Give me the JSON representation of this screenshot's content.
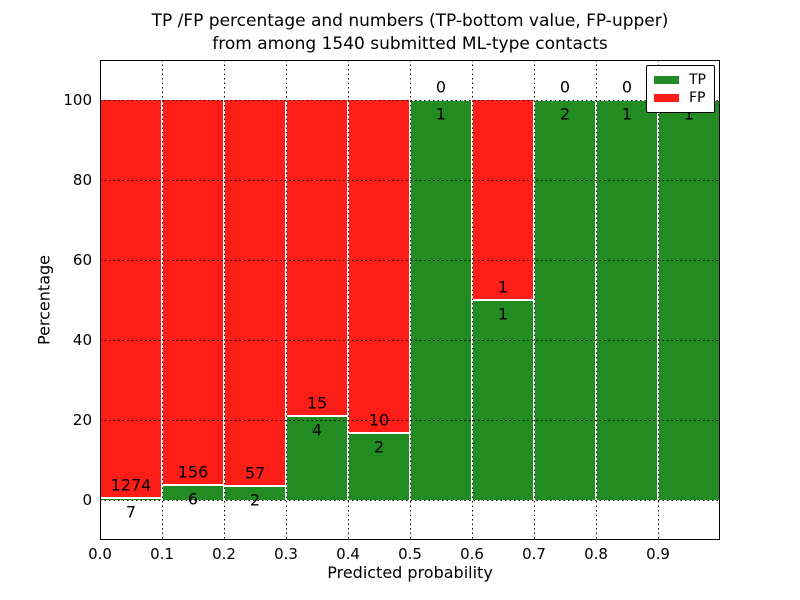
{
  "title": {
    "line1": "TP /FP percentage and numbers (TP-bottom value, FP-upper)",
    "line2": "from among 1540 submitted ML-type contacts"
  },
  "axes": {
    "xlabel": "Predicted probability",
    "ylabel": "Percentage",
    "xtick_labels": [
      "0.0",
      "0.1",
      "0.2",
      "0.3",
      "0.4",
      "0.5",
      "0.6",
      "0.7",
      "0.8",
      "0.9"
    ],
    "ytick_values": [
      0,
      20,
      40,
      60,
      80,
      100
    ],
    "ytick_labels": [
      "0",
      "20",
      "40",
      "60",
      "80",
      "100"
    ]
  },
  "legend": {
    "position": "upper right",
    "items": [
      {
        "label": "TP",
        "color": "#228b22"
      },
      {
        "label": "FP",
        "color": "#ff1d17"
      }
    ]
  },
  "colors": {
    "tp": "#228b22",
    "fp": "#ff1d17",
    "grid": "#000000",
    "frame": "#000000",
    "background": "#ffffff",
    "bar_edge": "#ffffff"
  },
  "chart_data": {
    "type": "bar",
    "stacked": true,
    "normalized_to_percent": true,
    "title": "TP /FP percentage and numbers (TP-bottom value, FP-upper) from among 1540 submitted ML-type contacts",
    "xlabel": "Predicted probability",
    "ylabel": "Percentage",
    "x_bin_start": [
      0.0,
      0.1,
      0.2,
      0.3,
      0.4,
      0.5,
      0.6,
      0.7,
      0.8,
      0.9
    ],
    "bin_width": 0.1,
    "series": [
      {
        "name": "TP",
        "values": [
          7,
          6,
          2,
          4,
          2,
          1,
          1,
          2,
          1,
          1
        ]
      },
      {
        "name": "FP",
        "values": [
          1274,
          156,
          57,
          15,
          10,
          0,
          1,
          0,
          0,
          0
        ]
      }
    ],
    "tp_percent": [
      0.55,
      3.7,
      3.39,
      21.05,
      16.67,
      100,
      50,
      100,
      100,
      100
    ],
    "total_contacts": 1540,
    "xlim": [
      0.0,
      1.0
    ],
    "ylim": [
      -10,
      110
    ],
    "grid": true,
    "grid_style": "dotted",
    "legend_position": "upper right",
    "note": "FP zero-label of last bin is hidden behind the legend box"
  }
}
